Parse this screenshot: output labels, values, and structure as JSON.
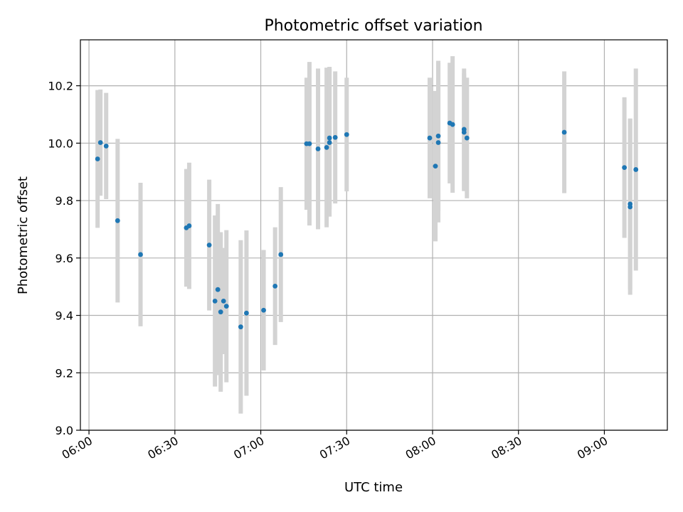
{
  "chart_data": {
    "type": "scatter",
    "title": "Photometric offset variation",
    "xlabel": "UTC time",
    "ylabel": "Photometric offset",
    "x_ticks": [
      "06:00",
      "06:30",
      "07:00",
      "07:30",
      "08:00",
      "08:30",
      "09:00"
    ],
    "y_ticks": [
      "9.0",
      "9.2",
      "9.4",
      "9.6",
      "9.8",
      "10.0",
      "10.2"
    ],
    "xlim": [
      "05:57",
      "09:22"
    ],
    "ylim": [
      9.0,
      10.36
    ],
    "grid": true,
    "legend": "none",
    "colors": {
      "point": "#1f77b4",
      "errorbar": "#d3d3d3",
      "grid": "#b0b0b0"
    },
    "points": [
      {
        "x": "06:03",
        "y": 9.945,
        "err": 0.24
      },
      {
        "x": "06:04",
        "y": 10.002,
        "err": 0.185
      },
      {
        "x": "06:06",
        "y": 9.99,
        "err": 0.185
      },
      {
        "x": "06:10",
        "y": 9.73,
        "err": 0.285
      },
      {
        "x": "06:18",
        "y": 9.612,
        "err": 0.25
      },
      {
        "x": "06:34",
        "y": 9.705,
        "err": 0.205
      },
      {
        "x": "06:35",
        "y": 9.712,
        "err": 0.22
      },
      {
        "x": "06:42",
        "y": 9.645,
        "err": 0.228
      },
      {
        "x": "06:44",
        "y": 9.45,
        "err": 0.298
      },
      {
        "x": "06:45",
        "y": 9.49,
        "err": 0.298
      },
      {
        "x": "06:46",
        "y": 9.412,
        "err": 0.278
      },
      {
        "x": "06:47",
        "y": 9.45,
        "err": 0.185
      },
      {
        "x": "06:48",
        "y": 9.432,
        "err": 0.265
      },
      {
        "x": "06:53",
        "y": 9.36,
        "err": 0.302
      },
      {
        "x": "06:55",
        "y": 9.408,
        "err": 0.288
      },
      {
        "x": "07:01",
        "y": 9.418,
        "err": 0.21
      },
      {
        "x": "07:05",
        "y": 9.502,
        "err": 0.205
      },
      {
        "x": "07:07",
        "y": 9.612,
        "err": 0.235
      },
      {
        "x": "07:16",
        "y": 9.998,
        "err": 0.23
      },
      {
        "x": "07:17",
        "y": 9.998,
        "err": 0.285
      },
      {
        "x": "07:20",
        "y": 9.98,
        "err": 0.28
      },
      {
        "x": "07:23",
        "y": 9.985,
        "err": 0.278
      },
      {
        "x": "07:24",
        "y": 10.018,
        "err": 0.248
      },
      {
        "x": "07:24",
        "y": 10.002,
        "err": 0.258
      },
      {
        "x": "07:26",
        "y": 10.02,
        "err": 0.23
      },
      {
        "x": "07:30",
        "y": 10.03,
        "err": 0.198
      },
      {
        "x": "07:59",
        "y": 10.018,
        "err": 0.21
      },
      {
        "x": "08:01",
        "y": 9.92,
        "err": 0.262
      },
      {
        "x": "08:02",
        "y": 10.025,
        "err": 0.262
      },
      {
        "x": "08:02",
        "y": 10.002,
        "err": 0.278
      },
      {
        "x": "08:06",
        "y": 10.07,
        "err": 0.21
      },
      {
        "x": "08:07",
        "y": 10.065,
        "err": 0.238
      },
      {
        "x": "08:11",
        "y": 10.048,
        "err": 0.212
      },
      {
        "x": "08:11",
        "y": 10.038,
        "err": 0.205
      },
      {
        "x": "08:12",
        "y": 10.018,
        "err": 0.21
      },
      {
        "x": "08:46",
        "y": 10.038,
        "err": 0.212
      },
      {
        "x": "09:07",
        "y": 9.915,
        "err": 0.245
      },
      {
        "x": "09:09",
        "y": 9.788,
        "err": 0.298
      },
      {
        "x": "09:09",
        "y": 9.778,
        "err": 0.306
      },
      {
        "x": "09:11",
        "y": 9.908,
        "err": 0.352
      }
    ]
  }
}
